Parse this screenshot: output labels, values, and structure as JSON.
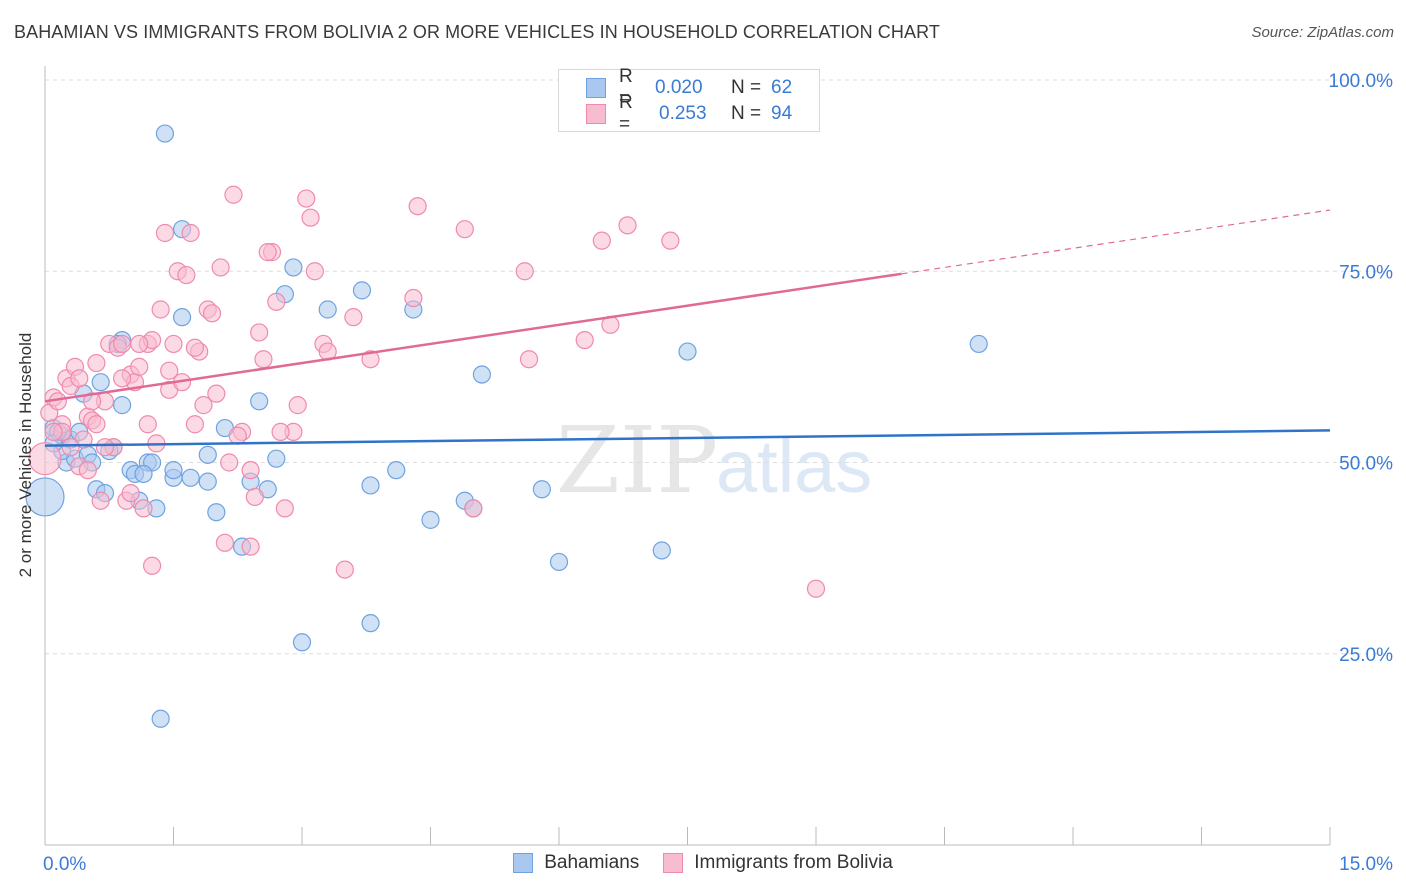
{
  "title": "BAHAMIAN VS IMMIGRANTS FROM BOLIVIA 2 OR MORE VEHICLES IN HOUSEHOLD CORRELATION CHART",
  "source": "Source: ZipAtlas.com",
  "watermark": {
    "zip": "ZIP",
    "atlas": "atlas"
  },
  "legend": {
    "rows": [
      {
        "r_label": "R =",
        "r_value": "0.020",
        "n_label": "N =",
        "n_value": "62"
      },
      {
        "r_label": "R =",
        "r_value": "0.253",
        "n_label": "N =",
        "n_value": "94"
      }
    ]
  },
  "chart_data": {
    "type": "scatter",
    "xlabel": "",
    "ylabel": "2 or more Vehicles in Household",
    "xlim": [
      0,
      15
    ],
    "ylim": [
      0,
      100
    ],
    "x_tick_labels": [
      "0.0%",
      "15.0%"
    ],
    "y_tick_labels": [
      "100.0%",
      "75.0%",
      "50.0%",
      "25.0%"
    ],
    "y_ticks": [
      100,
      75,
      50,
      25
    ],
    "grid": "horizontal dashed",
    "legend_position": "bottom",
    "series": [
      {
        "name": "Bahamians",
        "color": "#6fa3e0",
        "fill": "#aac8ef",
        "line_color": "#2f74c8",
        "trend": {
          "x": [
            0,
            15
          ],
          "y": [
            52.2,
            54.2
          ],
          "dashed_from": null
        },
        "points": [
          [
            0.0,
            45.5
          ],
          [
            0.1,
            54.5
          ],
          [
            0.2,
            53.5
          ],
          [
            0.25,
            50.0
          ],
          [
            0.35,
            50.5
          ],
          [
            0.5,
            51.0
          ],
          [
            0.6,
            46.5
          ],
          [
            0.7,
            46.0
          ],
          [
            0.8,
            52.0
          ],
          [
            0.9,
            57.5
          ],
          [
            1.0,
            49.0
          ],
          [
            1.1,
            45.0
          ],
          [
            1.2,
            50.0
          ],
          [
            1.3,
            44.0
          ],
          [
            1.5,
            48.0
          ],
          [
            1.6,
            80.5
          ],
          [
            1.9,
            47.5
          ],
          [
            2.0,
            43.5
          ],
          [
            2.1,
            54.5
          ],
          [
            2.3,
            39.0
          ],
          [
            2.5,
            58.0
          ],
          [
            2.6,
            46.5
          ],
          [
            2.8,
            72.0
          ],
          [
            3.0,
            26.5
          ],
          [
            3.3,
            70.0
          ],
          [
            3.7,
            72.5
          ],
          [
            3.8,
            47.0
          ],
          [
            3.8,
            29.0
          ],
          [
            4.1,
            49.0
          ],
          [
            4.3,
            70.0
          ],
          [
            4.5,
            42.5
          ],
          [
            4.9,
            45.0
          ],
          [
            5.0,
            44.0
          ],
          [
            5.1,
            61.5
          ],
          [
            5.8,
            46.5
          ],
          [
            6.0,
            37.0
          ],
          [
            7.2,
            38.5
          ],
          [
            7.5,
            64.5
          ],
          [
            1.6,
            69.0
          ],
          [
            0.65,
            60.5
          ],
          [
            0.9,
            66.0
          ],
          [
            1.4,
            93.0
          ],
          [
            1.35,
            16.5
          ],
          [
            0.2,
            51.5
          ],
          [
            0.45,
            59.0
          ],
          [
            0.55,
            50.0
          ],
          [
            0.3,
            53.0
          ],
          [
            1.05,
            48.5
          ],
          [
            1.25,
            50.0
          ],
          [
            1.5,
            49.0
          ],
          [
            1.7,
            48.0
          ],
          [
            1.9,
            51.0
          ],
          [
            2.4,
            47.5
          ],
          [
            2.7,
            50.5
          ],
          [
            2.9,
            75.5
          ],
          [
            0.15,
            54.0
          ],
          [
            0.4,
            54.0
          ],
          [
            0.75,
            51.5
          ],
          [
            1.15,
            48.5
          ],
          [
            0.85,
            65.5
          ],
          [
            10.9,
            65.5
          ],
          [
            0.1,
            52.5
          ]
        ]
      },
      {
        "name": "Immigrants from Bolivia",
        "color": "#f08aac",
        "fill": "#f7bcd0",
        "line_color": "#e06a95",
        "trend": {
          "x": [
            0,
            15
          ],
          "y": [
            58.0,
            83.0
          ],
          "dashed_from": 10.0
        },
        "points": [
          [
            0.0,
            50.5
          ],
          [
            0.05,
            56.5
          ],
          [
            0.1,
            58.5
          ],
          [
            0.2,
            55.0
          ],
          [
            0.25,
            61.0
          ],
          [
            0.3,
            60.0
          ],
          [
            0.35,
            62.5
          ],
          [
            0.4,
            49.5
          ],
          [
            0.45,
            53.0
          ],
          [
            0.5,
            56.0
          ],
          [
            0.55,
            55.5
          ],
          [
            0.6,
            55.0
          ],
          [
            0.65,
            45.0
          ],
          [
            0.7,
            58.0
          ],
          [
            0.75,
            65.5
          ],
          [
            0.8,
            52.0
          ],
          [
            0.85,
            65.0
          ],
          [
            0.9,
            65.5
          ],
          [
            0.95,
            45.0
          ],
          [
            1.0,
            61.5
          ],
          [
            1.05,
            60.5
          ],
          [
            1.1,
            62.5
          ],
          [
            1.15,
            44.0
          ],
          [
            1.2,
            65.5
          ],
          [
            1.25,
            36.5
          ],
          [
            1.3,
            52.5
          ],
          [
            1.35,
            70.0
          ],
          [
            1.4,
            80.0
          ],
          [
            1.45,
            59.5
          ],
          [
            1.5,
            65.5
          ],
          [
            1.55,
            75.0
          ],
          [
            1.6,
            60.5
          ],
          [
            1.65,
            74.5
          ],
          [
            1.7,
            80.0
          ],
          [
            1.75,
            55.0
          ],
          [
            1.8,
            64.5
          ],
          [
            1.85,
            57.5
          ],
          [
            1.9,
            70.0
          ],
          [
            2.0,
            59.0
          ],
          [
            2.05,
            75.5
          ],
          [
            2.1,
            39.5
          ],
          [
            2.15,
            50.0
          ],
          [
            2.2,
            85.0
          ],
          [
            2.3,
            54.0
          ],
          [
            2.4,
            39.0
          ],
          [
            2.45,
            45.5
          ],
          [
            2.5,
            67.0
          ],
          [
            2.55,
            63.5
          ],
          [
            2.65,
            77.5
          ],
          [
            2.7,
            71.0
          ],
          [
            2.8,
            44.0
          ],
          [
            2.9,
            54.0
          ],
          [
            2.95,
            57.5
          ],
          [
            3.05,
            84.5
          ],
          [
            3.1,
            82.0
          ],
          [
            3.15,
            75.0
          ],
          [
            3.25,
            65.5
          ],
          [
            3.3,
            64.5
          ],
          [
            3.5,
            36.0
          ],
          [
            3.6,
            69.0
          ],
          [
            3.8,
            63.5
          ],
          [
            4.3,
            71.5
          ],
          [
            4.35,
            83.5
          ],
          [
            4.9,
            80.5
          ],
          [
            5.0,
            44.0
          ],
          [
            5.6,
            75.0
          ],
          [
            5.65,
            63.5
          ],
          [
            6.3,
            66.0
          ],
          [
            6.5,
            79.0
          ],
          [
            6.6,
            68.0
          ],
          [
            6.8,
            81.0
          ],
          [
            7.3,
            79.0
          ],
          [
            9.0,
            33.5
          ],
          [
            0.15,
            58.0
          ],
          [
            0.5,
            49.0
          ],
          [
            0.7,
            52.0
          ],
          [
            0.9,
            61.0
          ],
          [
            1.0,
            46.0
          ],
          [
            1.25,
            66.0
          ],
          [
            1.45,
            62.0
          ],
          [
            1.75,
            65.0
          ],
          [
            1.95,
            69.5
          ],
          [
            2.25,
            53.5
          ],
          [
            2.4,
            49.0
          ],
          [
            2.6,
            77.5
          ],
          [
            2.75,
            54.0
          ],
          [
            0.2,
            54.0
          ],
          [
            0.4,
            61.0
          ],
          [
            0.6,
            63.0
          ],
          [
            1.1,
            65.5
          ],
          [
            1.2,
            55.0
          ],
          [
            0.1,
            54.0
          ],
          [
            0.3,
            52.0
          ],
          [
            0.55,
            58.0
          ]
        ]
      }
    ]
  }
}
